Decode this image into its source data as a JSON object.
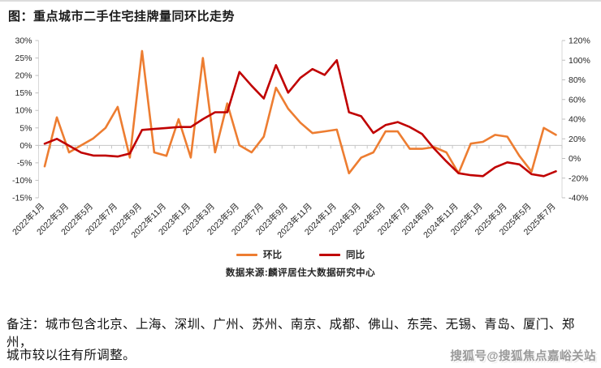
{
  "page_title": "图：重点城市二手住宅挂牌量同环比走势",
  "chart_data": {
    "type": "line",
    "title": "图：重点城市二手住宅挂牌量同环比走势",
    "grid": "zero-line-only",
    "legend_position": "bottom",
    "categories": [
      "2022年1月",
      "2022年2月",
      "2022年3月",
      "2022年4月",
      "2022年5月",
      "2022年6月",
      "2022年7月",
      "2022年8月",
      "2022年9月",
      "2022年10月",
      "2022年11月",
      "2022年12月",
      "2023年1月",
      "2023年2月",
      "2023年3月",
      "2023年4月",
      "2023年5月",
      "2023年6月",
      "2023年7月",
      "2023年8月",
      "2023年9月",
      "2023年10月",
      "2023年11月",
      "2023年12月",
      "2024年1月",
      "2024年2月",
      "2024年3月",
      "2024年4月",
      "2024年5月",
      "2024年6月",
      "2024年7月",
      "2024年8月",
      "2024年9月",
      "2024年10月",
      "2024年11月",
      "2024年12月",
      "2025年1月",
      "2025年2月",
      "2025年3月",
      "2025年4月",
      "2025年5月",
      "2025年6月",
      "2025年7月"
    ],
    "x_label_every": 2,
    "left_axis": {
      "min": -15,
      "max": 30,
      "step": 5,
      "unit": "%"
    },
    "right_axis": {
      "min": -40,
      "max": 120,
      "step": 20,
      "unit": "%"
    },
    "series": [
      {
        "name": "环比",
        "axis": "left",
        "color": "#ED7D31",
        "values": [
          -6,
          8,
          -2,
          0,
          2,
          5,
          11,
          -3.5,
          27,
          -2,
          -3,
          7.5,
          -3.5,
          25,
          -2,
          12,
          0,
          -2,
          2.5,
          16.5,
          10.5,
          6.5,
          3.5,
          4,
          4.5,
          -8,
          -3.5,
          -2,
          4,
          4,
          -1,
          -1,
          -0.5,
          -2,
          -8,
          0.5,
          1,
          3,
          2.5,
          -3,
          -7.5,
          5,
          3
        ]
      },
      {
        "name": "同比",
        "axis": "right",
        "color": "#C00000",
        "values": [
          15,
          20,
          13,
          6,
          3,
          3,
          2,
          5,
          29,
          30,
          31,
          32,
          32,
          40,
          47,
          47,
          88,
          74,
          61,
          95,
          67,
          82,
          91,
          85,
          100,
          47,
          43,
          26,
          34,
          37,
          32,
          25,
          10,
          -3,
          -15,
          -17,
          -18,
          -9,
          -4,
          -6,
          -16,
          -18,
          -13
        ]
      }
    ]
  },
  "legend": {
    "items": [
      {
        "label": "环比",
        "color": "#ED7D31"
      },
      {
        "label": "同比",
        "color": "#C00000"
      }
    ]
  },
  "source": {
    "text": "数据来源:麟评居住大数据研究中心"
  },
  "note": {
    "line1": "备注：城市包含北京、上海、深圳、广州、苏州、南京、成都、佛山、东莞、无锡、青岛、厦门、郑州，",
    "line2": "城市较以往有所调整。"
  },
  "watermark": {
    "text": "搜狐号@搜狐焦点嘉峪关站"
  }
}
